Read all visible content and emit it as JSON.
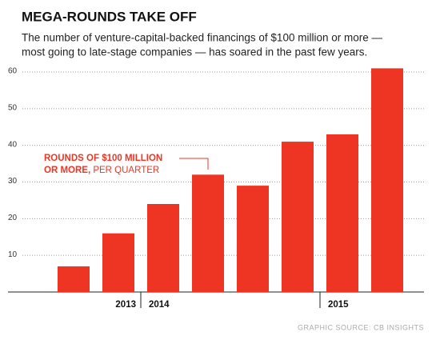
{
  "chart_data": {
    "type": "bar",
    "title": "MEGA-ROUNDS TAKE OFF",
    "subtitle": [
      "The number of venture-capital-backed financings of $100 million or more —",
      "most going to late-stage companies — has soared in the past few years."
    ],
    "annotation": {
      "line1": "ROUNDS OF $100 MILLION",
      "line2_bold": "OR MORE,",
      "line2": "PER QUARTER"
    },
    "source": "GRAPHIC SOURCE: CB INSIGHTS",
    "categories": [
      null,
      "2013",
      "2014",
      null,
      null,
      null,
      "2015",
      null
    ],
    "values": [
      7,
      16,
      24,
      32,
      29,
      41,
      43,
      61
    ],
    "color": "#ee3524",
    "ylim": [
      0,
      60
    ],
    "yticks": [
      10,
      20,
      30,
      40,
      50,
      60
    ],
    "grid": true
  }
}
